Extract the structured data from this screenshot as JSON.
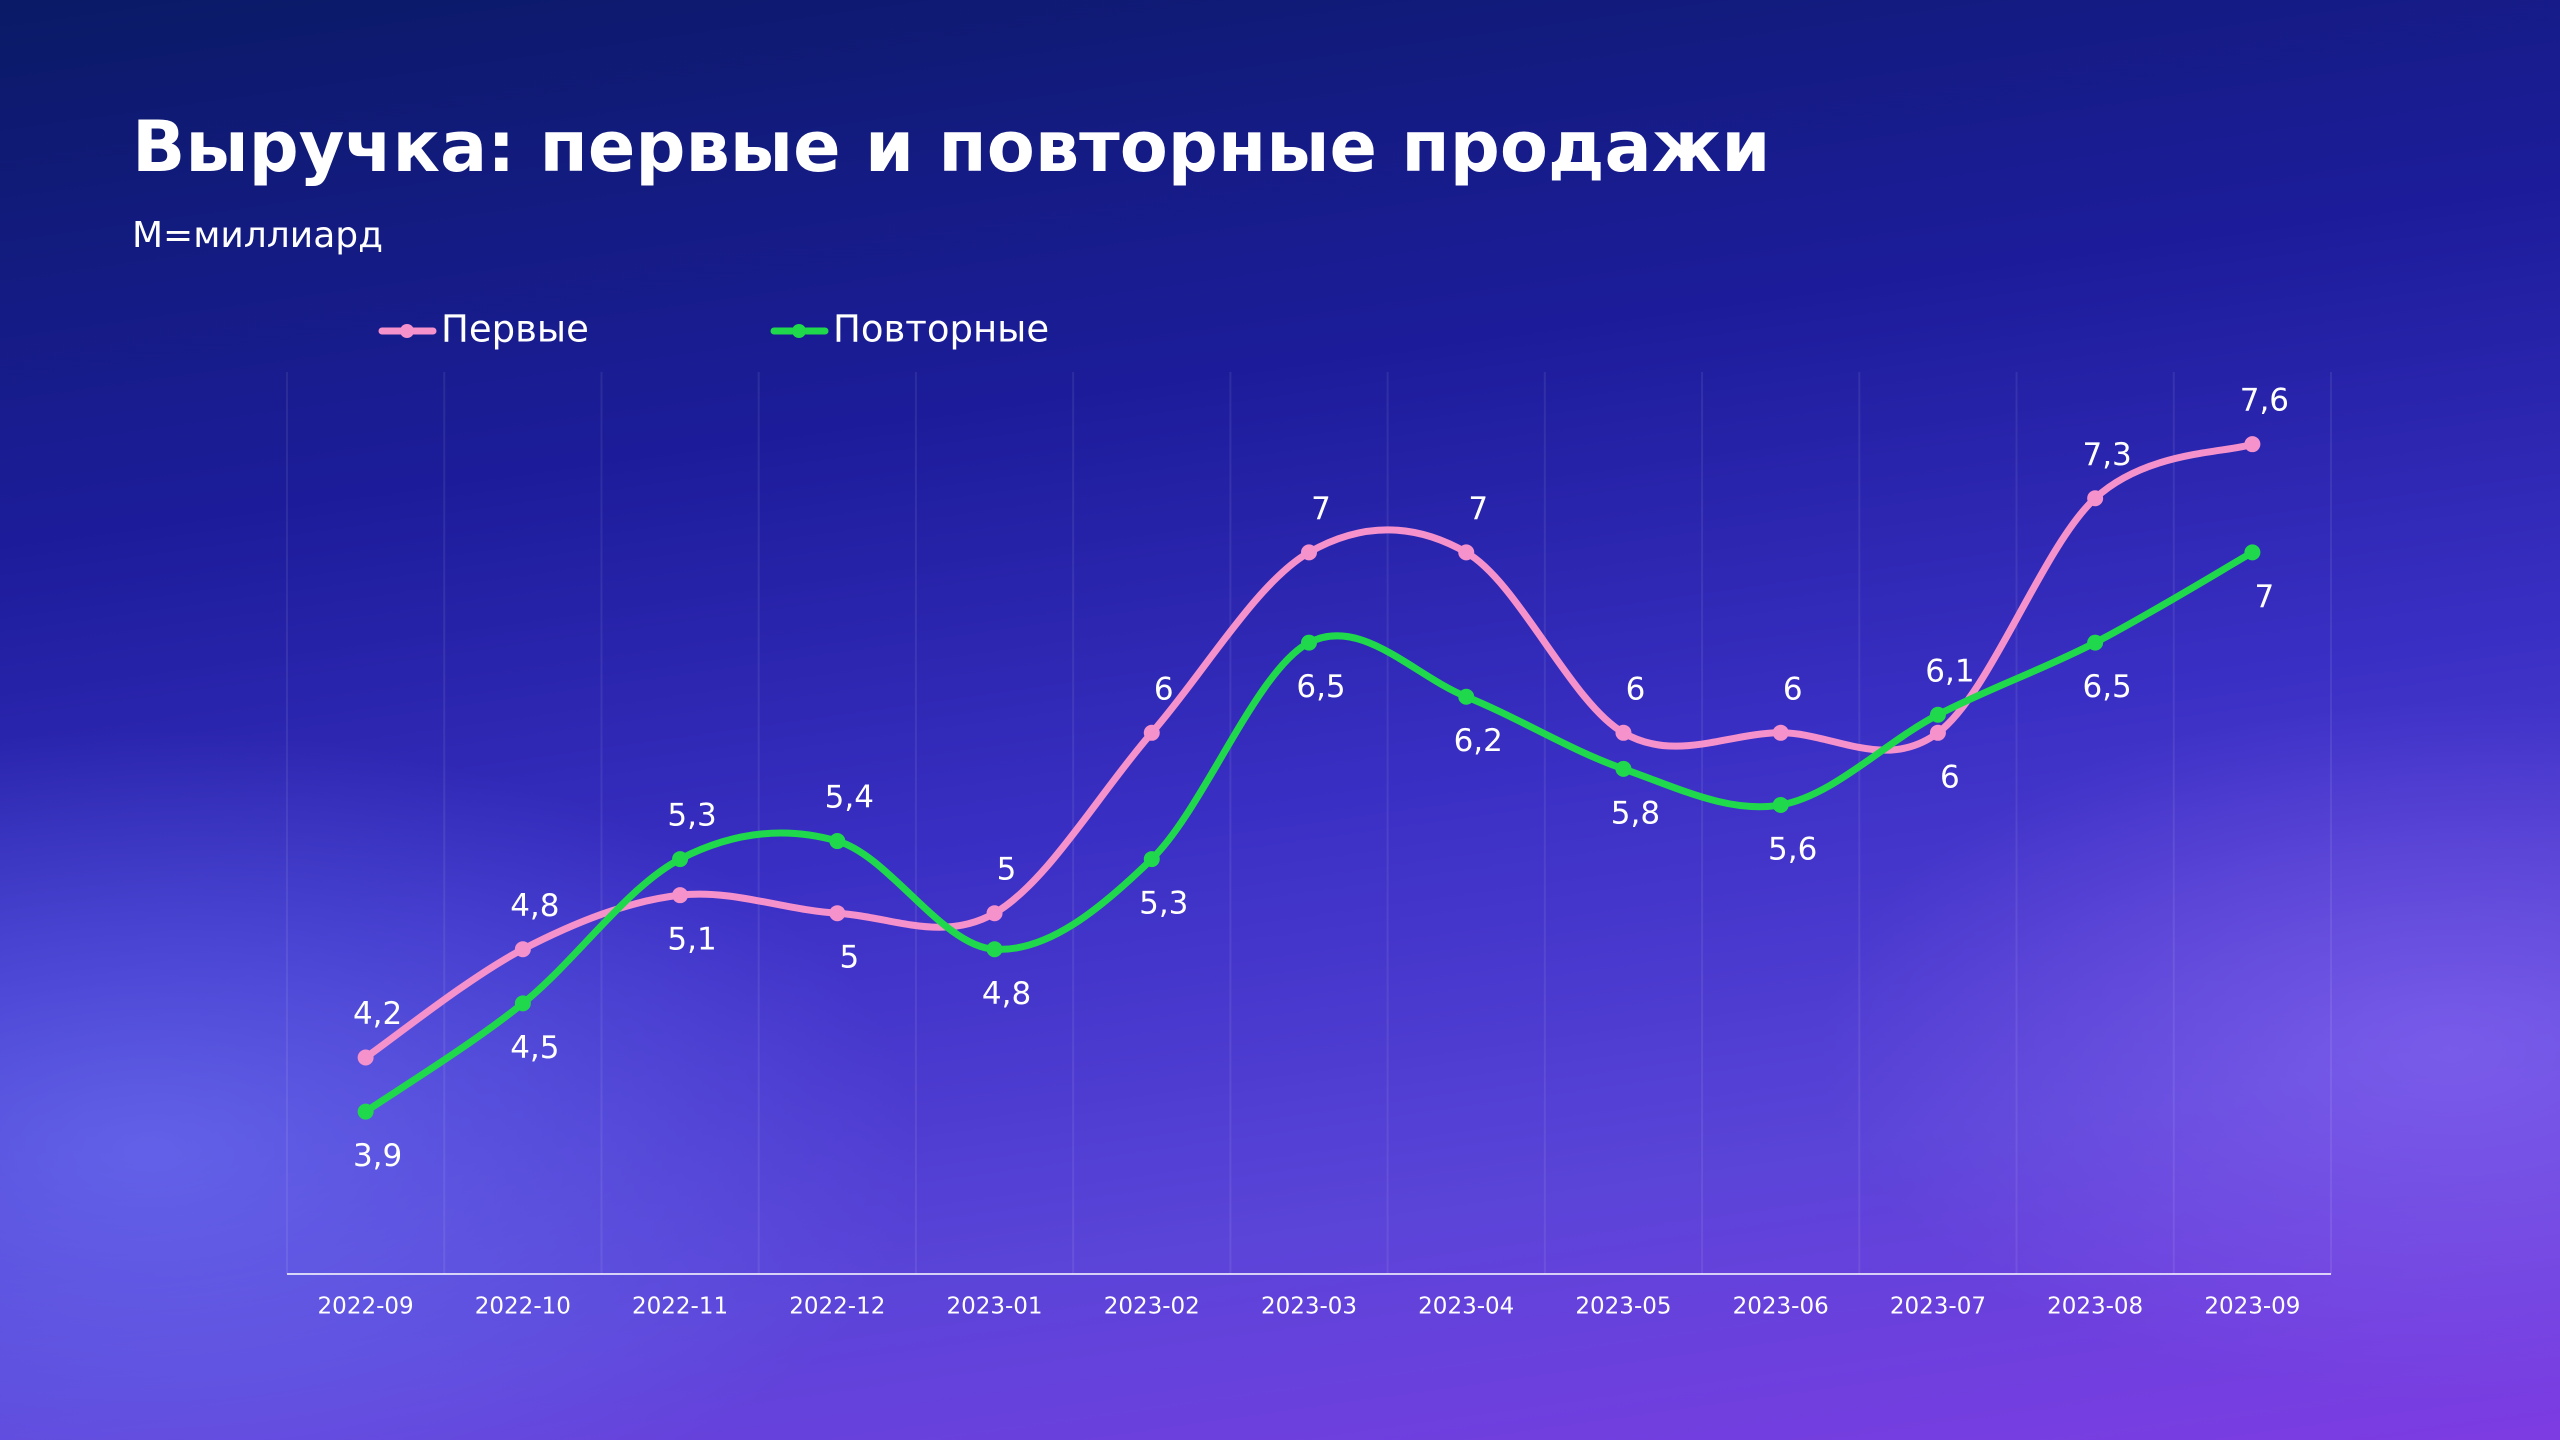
{
  "chart_data": {
    "type": "line",
    "title": "Выручка: первые и повторные продажи",
    "subtitle": "M=миллиард",
    "categories": [
      "2022-09",
      "2022-10",
      "2022-11",
      "2022-12",
      "2023-01",
      "2023-02",
      "2023-03",
      "2023-04",
      "2023-05",
      "2023-06",
      "2023-07",
      "2023-08",
      "2023-09"
    ],
    "series": [
      {
        "name": "Первые",
        "color": "#f592cb",
        "values": [
          4.2,
          4.8,
          5.1,
          5,
          5,
          6,
          7,
          7,
          6,
          6,
          6,
          7.3,
          7.6
        ],
        "value_labels": [
          "4,2",
          "4,8",
          "5,1",
          "5",
          "5",
          "6",
          "7",
          "7",
          "6",
          "6",
          "6",
          "7,3",
          "7,6"
        ]
      },
      {
        "name": "Повторные",
        "color": "#1fd84b",
        "values": [
          3.9,
          4.5,
          5.3,
          5.4,
          4.8,
          5.3,
          6.5,
          6.2,
          5.8,
          5.6,
          6.1,
          6.5,
          7
        ],
        "value_labels": [
          "3,9",
          "4,5",
          "5,3",
          "5,4",
          "4,8",
          "5,3",
          "6,5",
          "6,2",
          "5,8",
          "5,6",
          "6,1",
          "6,5",
          "7"
        ]
      }
    ],
    "ylim": [
      3,
      8
    ],
    "smooth": true,
    "grid": "vertical",
    "legend": "top-left"
  }
}
